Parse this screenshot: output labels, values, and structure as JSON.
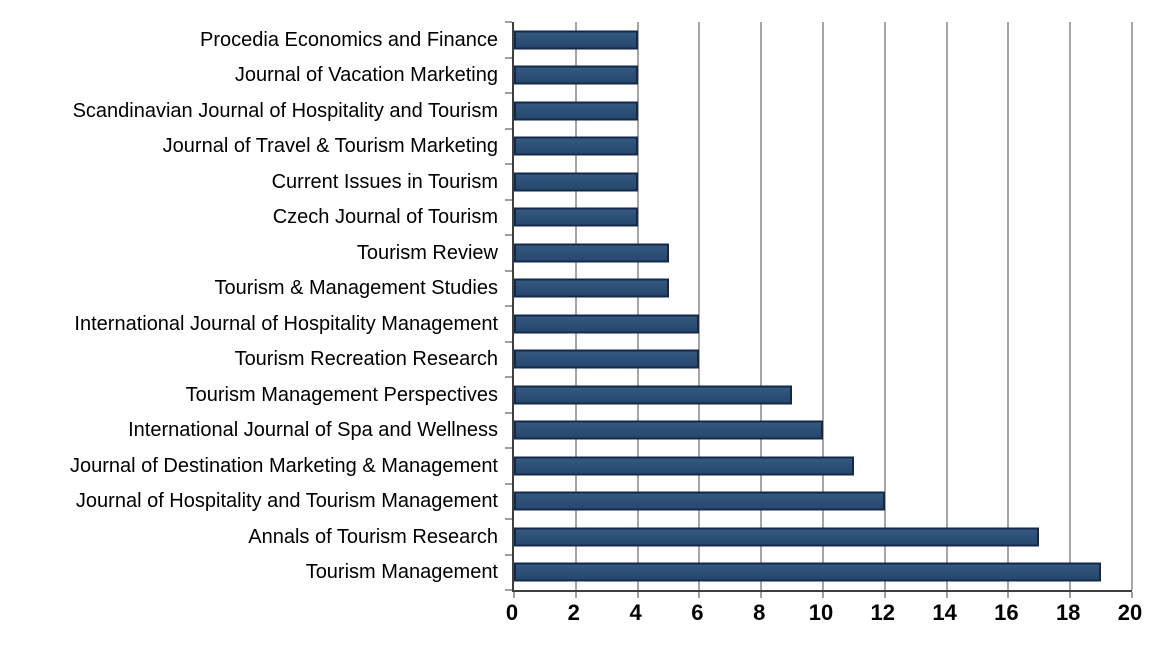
{
  "chart_data": {
    "type": "bar",
    "orientation": "horizontal",
    "title": "",
    "xlabel": "",
    "ylabel": "",
    "legend": "none",
    "grid": "vertical",
    "xlim": [
      0,
      20
    ],
    "x_ticks": [
      0,
      2,
      4,
      6,
      8,
      10,
      12,
      14,
      16,
      18,
      20
    ],
    "categories": [
      "Procedia Economics and Finance",
      "Journal of Vacation Marketing",
      "Scandinavian Journal of Hospitality and Tourism",
      "Journal of Travel & Tourism Marketing",
      "Current Issues in Tourism",
      "Czech Journal of Tourism",
      "Tourism Review",
      "Tourism & Management Studies",
      "International Journal of Hospitality Management",
      "Tourism Recreation Research",
      "Tourism Management Perspectives",
      "International Journal of Spa and Wellness",
      "Journal of Destination Marketing & Management",
      "Journal of Hospitality and Tourism Management",
      "Annals of Tourism Research",
      "Tourism Management"
    ],
    "values": [
      4,
      4,
      4,
      4,
      4,
      4,
      5,
      5,
      6,
      6,
      9,
      10,
      11,
      12,
      17,
      19
    ],
    "colors": {
      "bar_fill": "#2C4F78",
      "bar_border": "#13294B",
      "gridline": "#4d4d4d",
      "axis_line": "#3f3f3f",
      "text": "#000000",
      "background": "#ffffff"
    }
  }
}
